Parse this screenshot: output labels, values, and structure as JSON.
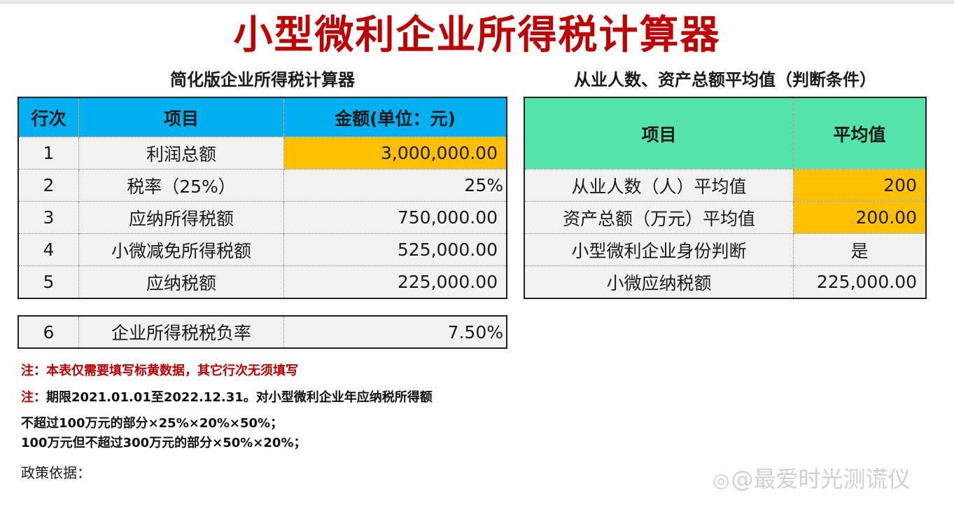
{
  "title": "小型微利企业所得税计算器",
  "left": {
    "subtitle": "简化版企业所得税计算器",
    "headers": [
      "行次",
      "项目",
      "金额(单位：元)"
    ],
    "rows": [
      {
        "no": "1",
        "item": "利润总额",
        "amount": "3,000,000.00"
      },
      {
        "no": "2",
        "item": "税率（25%）",
        "amount": "25%"
      },
      {
        "no": "3",
        "item": "应纳所得税额",
        "amount": "750,000.00"
      },
      {
        "no": "4",
        "item": "小微减免所得税额",
        "amount": "525,000.00"
      },
      {
        "no": "5",
        "item": "应纳税额",
        "amount": "225,000.00"
      }
    ],
    "burden": {
      "no": "6",
      "item": "企业所得税税负率",
      "amount": "7.50%"
    }
  },
  "right": {
    "subtitle": "从业人数、资产总额平均值（判断条件）",
    "headers": [
      "项目",
      "平均值"
    ],
    "rows": [
      {
        "item": "从业人数（人）平均值",
        "value": "200"
      },
      {
        "item": "资产总额（万元）平均值",
        "value": "200.00"
      },
      {
        "item": "小型微利企业身份判断",
        "value": "是"
      },
      {
        "item": "小微应纳税额",
        "value": "225,000.00"
      }
    ]
  },
  "notes": {
    "note1": "注：本表仅需要填写标黄数据，其它行次无须填写",
    "note2_prefix": "注：",
    "note2_text": "期限2021.01.01至2022.12.31。对小型微利企业年应纳税所得额",
    "note3": "不超过100万元的部分×25%×20%×50%；",
    "note4": "100万元但不超过300万元的部分×50%×20%；",
    "policy": "政策依据："
  },
  "watermark": {
    "icon": "weibo-logo-icon",
    "text": "@最爱时光测谎仪"
  },
  "colors": {
    "title_red": "#c00000",
    "header_blue": "#00b0f0",
    "header_green": "#54e3a8",
    "input_yellow": "#ffc000"
  }
}
